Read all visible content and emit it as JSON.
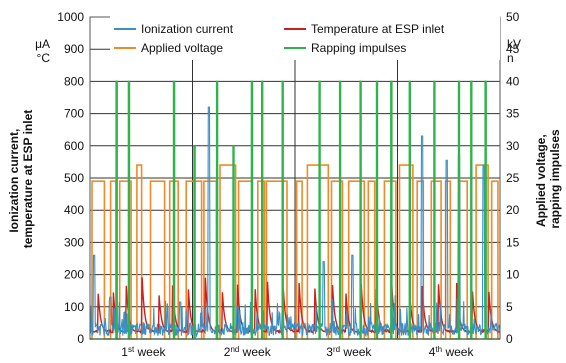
{
  "chart_data": {
    "type": "line",
    "ylabel_left": "Ionization current,\ntemperature at ESP inlet",
    "ylabel_right": "Applied voltage,\nrapping impulses",
    "units_left": [
      "μA",
      "°C"
    ],
    "units_right": [
      "kV",
      "n"
    ],
    "ylim_left": [
      0,
      1000
    ],
    "ylim_right": [
      0,
      50
    ],
    "yticks_left": [
      "0",
      "100",
      "200",
      "300",
      "400",
      "500",
      "600",
      "700",
      "800",
      "900",
      "1000"
    ],
    "yticks_right": [
      "0",
      "5",
      "10",
      "15",
      "20",
      "25",
      "30",
      "35",
      "40",
      "45",
      "50"
    ],
    "x_categories": [
      {
        "label": "1",
        "sup": "st",
        "rest": " week"
      },
      {
        "label": "2",
        "sup": "nd",
        "rest": " week"
      },
      {
        "label": "3",
        "sup": "rd",
        "rest": " week"
      },
      {
        "label": "4",
        "sup": "th",
        "rest": " week"
      }
    ],
    "grid": true,
    "legend_position": "top",
    "series": [
      {
        "name": "Ionization current",
        "axis": "left",
        "color": "#3b8fc4",
        "typical": [
          10,
          50
        ],
        "peaks": [
          260,
          130,
          115,
          720,
          100,
          100,
          240,
          260,
          630,
          555,
          570,
          540
        ]
      },
      {
        "name": "Temperature at ESP inlet",
        "axis": "left",
        "color": "#cc1f1f",
        "typical_range": [
          15,
          190
        ]
      },
      {
        "name": "Applied voltage",
        "axis": "right",
        "color": "#f08a28",
        "on_level": 24.5,
        "max": 27,
        "min": 0
      },
      {
        "name": "Rapping impulses",
        "axis": "right",
        "color": "#2fb34a",
        "level": 40,
        "max_level": 40
      }
    ]
  }
}
